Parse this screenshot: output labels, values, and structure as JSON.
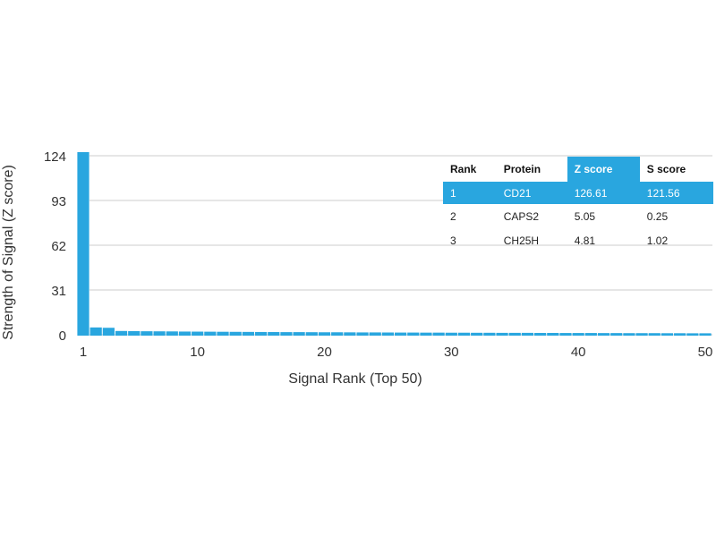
{
  "chart_data": {
    "type": "bar",
    "xlabel": "Signal Rank (Top 50)",
    "ylabel": "Strength of Signal (Z score)",
    "yticks": [
      0,
      31,
      62,
      93,
      124
    ],
    "xticks": [
      1,
      10,
      20,
      30,
      40,
      50
    ],
    "ylim": [
      0,
      124
    ],
    "xlim": [
      1,
      50
    ],
    "grid": true,
    "bar_color": "#29a6df",
    "x": [
      1,
      2,
      3,
      4,
      5,
      6,
      7,
      8,
      9,
      10,
      11,
      12,
      13,
      14,
      15,
      16,
      17,
      18,
      19,
      20,
      21,
      22,
      23,
      24,
      25,
      26,
      27,
      28,
      29,
      30,
      31,
      32,
      33,
      34,
      35,
      36,
      37,
      38,
      39,
      40,
      41,
      42,
      43,
      44,
      45,
      46,
      47,
      48,
      49,
      50
    ],
    "values": [
      126.61,
      5.05,
      4.81,
      2.6,
      2.5,
      2.4,
      2.35,
      2.3,
      2.2,
      2.15,
      2.1,
      2.05,
      2.0,
      1.95,
      1.9,
      1.85,
      1.8,
      1.8,
      1.75,
      1.7,
      1.7,
      1.65,
      1.6,
      1.6,
      1.55,
      1.5,
      1.5,
      1.45,
      1.45,
      1.4,
      1.4,
      1.35,
      1.35,
      1.3,
      1.3,
      1.3,
      1.25,
      1.25,
      1.2,
      1.2,
      1.2,
      1.15,
      1.15,
      1.1,
      1.1,
      1.1,
      1.05,
      1.05,
      1.0,
      1.0
    ]
  },
  "table": {
    "headers": [
      "Rank",
      "Protein",
      "Z score",
      "S score"
    ],
    "highlight_color": "#29a6df",
    "rows": [
      [
        "1",
        "CD21",
        "126.61",
        "121.56"
      ],
      [
        "2",
        "CAPS2",
        "5.05",
        "0.25"
      ],
      [
        "3",
        "CH25H",
        "4.81",
        "1.02"
      ]
    ]
  }
}
